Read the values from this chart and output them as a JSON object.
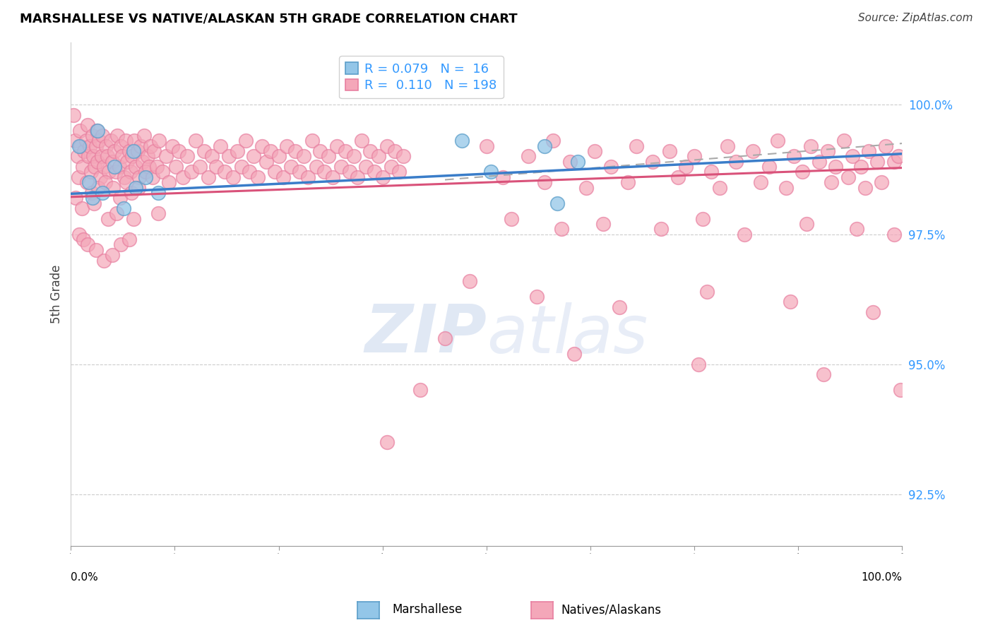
{
  "title": "MARSHALLESE VS NATIVE/ALASKAN 5TH GRADE CORRELATION CHART",
  "source": "Source: ZipAtlas.com",
  "ylabel": "5th Grade",
  "xlim": [
    0,
    100
  ],
  "ylim": [
    91.5,
    101.2
  ],
  "yticks": [
    92.5,
    95.0,
    97.5,
    100.0
  ],
  "ytick_labels": [
    "92.5%",
    "95.0%",
    "97.5%",
    "100.0%"
  ],
  "blue_color": "#93c6e8",
  "pink_color": "#f4a7b9",
  "blue_edge": "#5b9ec9",
  "pink_edge": "#e87fa0",
  "trend_blue": "#3a7dc9",
  "trend_pink": "#d9527a",
  "trend_gray": "#aaaaaa",
  "watermark_color": "#ccd9ee",
  "marshallese_points": [
    [
      1.0,
      99.2
    ],
    [
      2.2,
      98.5
    ],
    [
      2.6,
      98.2
    ],
    [
      3.2,
      99.5
    ],
    [
      3.8,
      98.3
    ],
    [
      5.2,
      98.8
    ],
    [
      6.3,
      98.0
    ],
    [
      7.5,
      99.1
    ],
    [
      7.8,
      98.4
    ],
    [
      9.0,
      98.6
    ],
    [
      10.5,
      98.3
    ],
    [
      47.0,
      99.3
    ],
    [
      50.5,
      98.7
    ],
    [
      57.0,
      99.2
    ],
    [
      58.5,
      98.1
    ],
    [
      61.0,
      98.9
    ]
  ],
  "native_points_main": [
    [
      0.3,
      99.8
    ],
    [
      0.5,
      99.3
    ],
    [
      0.8,
      99.0
    ],
    [
      0.9,
      98.6
    ],
    [
      1.1,
      99.5
    ],
    [
      1.2,
      99.2
    ],
    [
      1.4,
      98.8
    ],
    [
      1.6,
      99.1
    ],
    [
      1.8,
      99.3
    ],
    [
      1.9,
      98.5
    ],
    [
      2.0,
      99.6
    ],
    [
      2.1,
      99.0
    ],
    [
      2.3,
      99.2
    ],
    [
      2.4,
      98.7
    ],
    [
      2.6,
      99.4
    ],
    [
      2.7,
      99.0
    ],
    [
      2.9,
      98.8
    ],
    [
      3.0,
      99.2
    ],
    [
      3.1,
      99.5
    ],
    [
      3.2,
      98.9
    ],
    [
      3.4,
      99.3
    ],
    [
      3.5,
      98.6
    ],
    [
      3.7,
      99.0
    ],
    [
      3.8,
      99.4
    ],
    [
      4.0,
      98.8
    ],
    [
      4.2,
      99.2
    ],
    [
      4.4,
      99.0
    ],
    [
      4.6,
      98.7
    ],
    [
      4.8,
      99.3
    ],
    [
      5.0,
      98.9
    ],
    [
      5.2,
      99.1
    ],
    [
      5.4,
      98.7
    ],
    [
      5.6,
      99.4
    ],
    [
      5.8,
      98.8
    ],
    [
      6.0,
      99.2
    ],
    [
      6.2,
      99.0
    ],
    [
      6.4,
      98.6
    ],
    [
      6.6,
      99.3
    ],
    [
      6.8,
      98.9
    ],
    [
      7.0,
      99.1
    ],
    [
      7.2,
      98.7
    ],
    [
      7.4,
      99.0
    ],
    [
      7.6,
      99.3
    ],
    [
      7.8,
      98.8
    ],
    [
      8.0,
      99.1
    ],
    [
      8.2,
      98.6
    ],
    [
      8.4,
      99.2
    ],
    [
      8.6,
      98.9
    ],
    [
      8.8,
      99.4
    ],
    [
      9.0,
      98.7
    ],
    [
      9.2,
      99.0
    ],
    [
      9.4,
      98.8
    ],
    [
      9.6,
      99.2
    ],
    [
      9.8,
      98.6
    ],
    [
      10.0,
      99.1
    ],
    [
      10.3,
      98.8
    ],
    [
      10.6,
      99.3
    ],
    [
      11.0,
      98.7
    ],
    [
      11.4,
      99.0
    ],
    [
      11.8,
      98.5
    ],
    [
      12.2,
      99.2
    ],
    [
      12.6,
      98.8
    ],
    [
      13.0,
      99.1
    ],
    [
      13.5,
      98.6
    ],
    [
      14.0,
      99.0
    ],
    [
      14.5,
      98.7
    ],
    [
      15.0,
      99.3
    ],
    [
      15.5,
      98.8
    ],
    [
      16.0,
      99.1
    ],
    [
      16.5,
      98.6
    ],
    [
      17.0,
      99.0
    ],
    [
      17.5,
      98.8
    ],
    [
      18.0,
      99.2
    ],
    [
      18.5,
      98.7
    ],
    [
      19.0,
      99.0
    ],
    [
      19.5,
      98.6
    ],
    [
      20.0,
      99.1
    ],
    [
      20.5,
      98.8
    ],
    [
      21.0,
      99.3
    ],
    [
      21.5,
      98.7
    ],
    [
      22.0,
      99.0
    ],
    [
      22.5,
      98.6
    ],
    [
      23.0,
      99.2
    ],
    [
      23.5,
      98.9
    ],
    [
      24.0,
      99.1
    ],
    [
      24.5,
      98.7
    ],
    [
      25.0,
      99.0
    ],
    [
      25.5,
      98.6
    ],
    [
      26.0,
      99.2
    ],
    [
      26.5,
      98.8
    ],
    [
      27.0,
      99.1
    ],
    [
      27.5,
      98.7
    ],
    [
      28.0,
      99.0
    ],
    [
      28.5,
      98.6
    ],
    [
      29.0,
      99.3
    ],
    [
      29.5,
      98.8
    ],
    [
      30.0,
      99.1
    ],
    [
      30.5,
      98.7
    ],
    [
      31.0,
      99.0
    ],
    [
      31.5,
      98.6
    ],
    [
      32.0,
      99.2
    ],
    [
      32.5,
      98.8
    ],
    [
      33.0,
      99.1
    ],
    [
      33.5,
      98.7
    ],
    [
      34.0,
      99.0
    ],
    [
      34.5,
      98.6
    ],
    [
      35.0,
      99.3
    ],
    [
      35.5,
      98.8
    ],
    [
      36.0,
      99.1
    ],
    [
      36.5,
      98.7
    ],
    [
      37.0,
      99.0
    ],
    [
      37.5,
      98.6
    ],
    [
      38.0,
      99.2
    ],
    [
      38.5,
      98.8
    ],
    [
      39.0,
      99.1
    ],
    [
      39.5,
      98.7
    ],
    [
      40.0,
      99.0
    ],
    [
      2.5,
      98.3
    ],
    [
      3.3,
      98.4
    ],
    [
      4.1,
      98.5
    ],
    [
      5.1,
      98.4
    ],
    [
      5.9,
      98.2
    ],
    [
      6.7,
      98.5
    ],
    [
      7.3,
      98.3
    ],
    [
      8.1,
      98.4
    ],
    [
      0.6,
      98.2
    ],
    [
      1.3,
      98.0
    ],
    [
      2.8,
      98.1
    ],
    [
      4.5,
      97.8
    ],
    [
      5.5,
      97.9
    ],
    [
      7.5,
      97.8
    ],
    [
      10.5,
      97.9
    ],
    [
      1.0,
      97.5
    ],
    [
      1.5,
      97.4
    ],
    [
      2.0,
      97.3
    ],
    [
      3.0,
      97.2
    ],
    [
      4.0,
      97.0
    ],
    [
      5.0,
      97.1
    ],
    [
      6.0,
      97.3
    ],
    [
      7.0,
      97.4
    ],
    [
      50.0,
      99.2
    ],
    [
      55.0,
      99.0
    ],
    [
      58.0,
      99.3
    ],
    [
      60.0,
      98.9
    ],
    [
      63.0,
      99.1
    ],
    [
      65.0,
      98.8
    ],
    [
      68.0,
      99.2
    ],
    [
      70.0,
      98.9
    ],
    [
      72.0,
      99.1
    ],
    [
      74.0,
      98.8
    ],
    [
      75.0,
      99.0
    ],
    [
      77.0,
      98.7
    ],
    [
      79.0,
      99.2
    ],
    [
      80.0,
      98.9
    ],
    [
      82.0,
      99.1
    ],
    [
      84.0,
      98.8
    ],
    [
      85.0,
      99.3
    ],
    [
      87.0,
      99.0
    ],
    [
      88.0,
      98.7
    ],
    [
      89.0,
      99.2
    ],
    [
      90.0,
      98.9
    ],
    [
      91.0,
      99.1
    ],
    [
      92.0,
      98.8
    ],
    [
      93.0,
      99.3
    ],
    [
      94.0,
      99.0
    ],
    [
      95.0,
      98.8
    ],
    [
      96.0,
      99.1
    ],
    [
      97.0,
      98.9
    ],
    [
      98.0,
      99.2
    ],
    [
      99.0,
      98.9
    ],
    [
      99.5,
      99.0
    ],
    [
      52.0,
      98.6
    ],
    [
      57.0,
      98.5
    ],
    [
      62.0,
      98.4
    ],
    [
      67.0,
      98.5
    ],
    [
      73.0,
      98.6
    ],
    [
      78.0,
      98.4
    ],
    [
      83.0,
      98.5
    ],
    [
      86.0,
      98.4
    ],
    [
      91.5,
      98.5
    ],
    [
      93.5,
      98.6
    ],
    [
      95.5,
      98.4
    ],
    [
      97.5,
      98.5
    ],
    [
      53.0,
      97.8
    ],
    [
      59.0,
      97.6
    ],
    [
      64.0,
      97.7
    ],
    [
      71.0,
      97.6
    ],
    [
      76.0,
      97.8
    ],
    [
      81.0,
      97.5
    ],
    [
      88.5,
      97.7
    ],
    [
      94.5,
      97.6
    ],
    [
      99.0,
      97.5
    ],
    [
      48.0,
      96.6
    ],
    [
      56.0,
      96.3
    ],
    [
      66.0,
      96.1
    ],
    [
      76.5,
      96.4
    ],
    [
      86.5,
      96.2
    ],
    [
      96.5,
      96.0
    ],
    [
      45.0,
      95.5
    ],
    [
      60.5,
      95.2
    ],
    [
      75.5,
      95.0
    ],
    [
      90.5,
      94.8
    ],
    [
      99.8,
      94.5
    ],
    [
      42.0,
      94.5
    ],
    [
      38.0,
      93.5
    ]
  ]
}
